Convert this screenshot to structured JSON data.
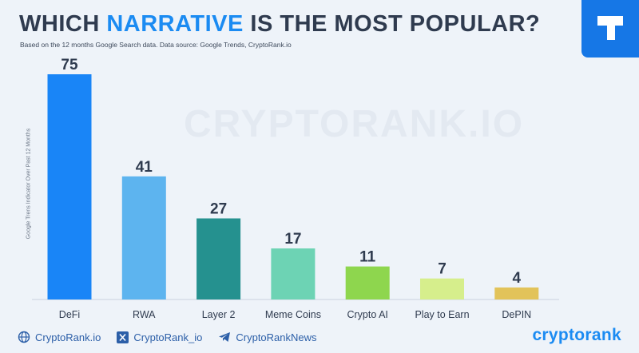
{
  "header": {
    "title_part1": "WHICH ",
    "title_accent": "NARRATIVE",
    "title_part2": " IS THE MOST POPULAR?",
    "subtitle": "Based on the 12 months Google Search data. Data source: Google Trends, CryptoRank.io"
  },
  "watermark": "CRYPTORANK.IO",
  "footer": {
    "website": "CryptoRank.io",
    "x_handle": "CryptoRank_io",
    "telegram": "CryptoRankNews",
    "brand": "cryptorank"
  },
  "colors": {
    "accent": "#1b8bf2",
    "background": "#eef3f9",
    "logo_box": "#1677e6"
  },
  "icons": [
    "globe-icon",
    "x-icon",
    "telegram-icon",
    "logo-icon"
  ],
  "chart_data": {
    "type": "bar",
    "title": "WHICH NARRATIVE IS THE MOST POPULAR?",
    "ylabel": "Google Trens Indicator Over Past 12 Months",
    "xlabel": "",
    "categories": [
      "DeFi",
      "RWA",
      "Layer 2",
      "Meme Coins",
      "Crypto AI",
      "Play to Earn",
      "DePIN"
    ],
    "values": [
      75,
      41,
      27,
      17,
      11,
      7,
      4
    ],
    "bar_colors": [
      "#1985f7",
      "#5db4ef",
      "#25918f",
      "#6dd3b4",
      "#8ed64e",
      "#d6ee8c",
      "#e2c35a"
    ],
    "ylim": [
      0,
      75
    ],
    "grid": false,
    "legend": "none"
  }
}
